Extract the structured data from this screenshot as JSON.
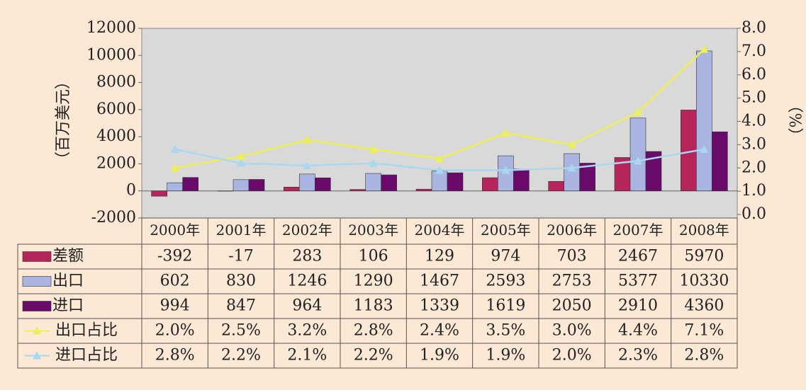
{
  "chart_data": {
    "type": "bar",
    "y_label": "（百万美元）",
    "y2_label": "（%）",
    "categories": [
      "2000年",
      "2001年",
      "2002年",
      "2003年",
      "2004年",
      "2005年",
      "2006年",
      "2007年",
      "2008年"
    ],
    "series": [
      {
        "name": "差额",
        "color": "#b5245a",
        "values": [
          -392,
          -17,
          283,
          106,
          129,
          974,
          703,
          2467,
          5970
        ]
      },
      {
        "name": "出口",
        "color": "#aab4e0",
        "values": [
          602,
          830,
          1246,
          1290,
          1467,
          2593,
          2753,
          5377,
          10330
        ]
      },
      {
        "name": "进口",
        "color": "#6a0a6a",
        "values": [
          994,
          847,
          964,
          1183,
          1339,
          1619,
          2050,
          2910,
          4360
        ]
      },
      {
        "name": "出口占比",
        "type": "line",
        "axis": "y2",
        "color": "#eeee55",
        "values": [
          2.0,
          2.5,
          3.2,
          2.8,
          2.4,
          3.5,
          3.0,
          4.4,
          7.1
        ],
        "value_labels": [
          "2.0%",
          "2.5%",
          "3.2%",
          "2.8%",
          "2.4%",
          "3.5%",
          "3.0%",
          "4.4%",
          "7.1%"
        ]
      },
      {
        "name": "进口占比",
        "type": "line",
        "axis": "y2",
        "color": "#a8d8f0",
        "values": [
          2.8,
          2.2,
          2.1,
          2.2,
          1.9,
          1.9,
          2.0,
          2.3,
          2.8
        ],
        "value_labels": [
          "2.8%",
          "2.2%",
          "2.1%",
          "2.2%",
          "1.9%",
          "1.9%",
          "2.0%",
          "2.3%",
          "2.8%"
        ]
      }
    ],
    "ylim": [
      -2000,
      12000
    ],
    "yticks": [
      -2000,
      0,
      2000,
      4000,
      6000,
      8000,
      10000,
      12000
    ],
    "y2lim": [
      0,
      8
    ],
    "y2ticks": [
      {
        "value": 0,
        "label": "0.0"
      },
      {
        "value": 1,
        "label": "1.0"
      },
      {
        "value": 2,
        "label": "2.0"
      },
      {
        "value": 3,
        "label": "3.0"
      },
      {
        "value": 4,
        "label": "4.0"
      },
      {
        "value": 5,
        "label": "5.0"
      },
      {
        "value": 6,
        "label": "6.0"
      },
      {
        "value": 7,
        "label": "7.0"
      },
      {
        "value": 8,
        "label": "8.0"
      }
    ]
  }
}
